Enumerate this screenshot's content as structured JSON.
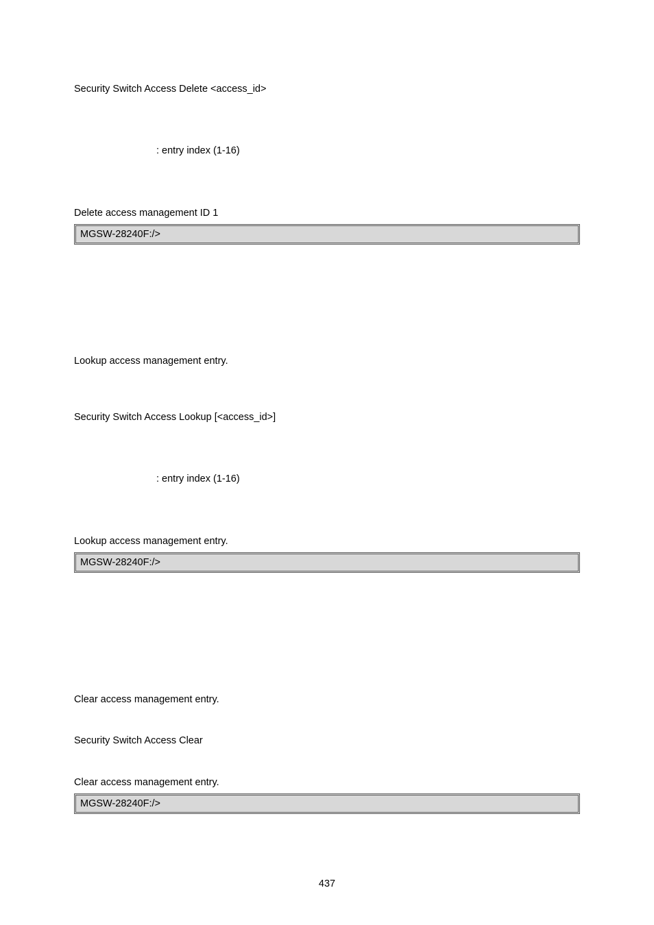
{
  "section1": {
    "syntax": "Security Switch Access Delete <access_id>",
    "param": ": entry index (1-16)",
    "desc": "Delete access management ID 1",
    "code": "MGSW-28240F:/>"
  },
  "section2": {
    "desc1": "Lookup access management entry.",
    "syntax": "Security Switch Access Lookup [<access_id>]",
    "param": ": entry index (1-16)",
    "desc2": "Lookup access management entry.",
    "code": "MGSW-28240F:/>"
  },
  "section3": {
    "desc1": "Clear access management entry.",
    "syntax": "Security Switch Access Clear",
    "desc2": "Clear access management entry.",
    "code": "MGSW-28240F:/>"
  },
  "footer": {
    "pagenum": "437"
  }
}
